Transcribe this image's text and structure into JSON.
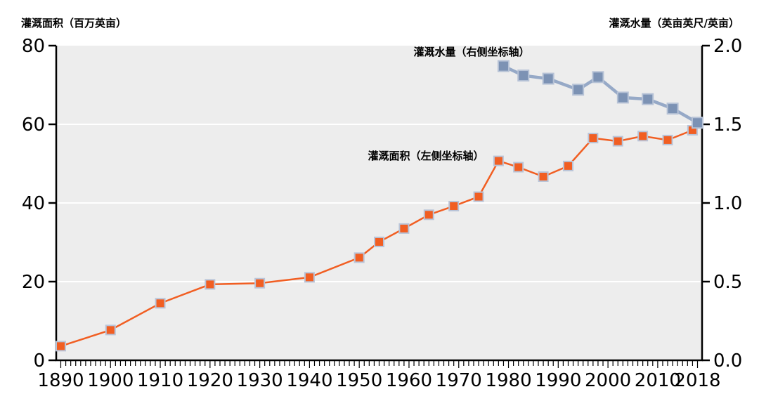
{
  "chart_data": {
    "type": "line",
    "plot_bg": "#EDEDED",
    "grid": {
      "color": "#FFFFFF",
      "left_values": [
        20,
        40,
        60
      ]
    },
    "axis_color": "#000000",
    "x_axis": {
      "range": [
        1890,
        2018
      ],
      "minor_tick_step": 1,
      "ticks": [
        {
          "label": "1890",
          "value": 1890
        },
        {
          "label": "1900",
          "value": 1900
        },
        {
          "label": "1910",
          "value": 1910
        },
        {
          "label": "1920",
          "value": 1920
        },
        {
          "label": "1930",
          "value": 1930
        },
        {
          "label": "1940",
          "value": 1940
        },
        {
          "label": "1950",
          "value": 1950
        },
        {
          "label": "1960",
          "value": 1960
        },
        {
          "label": "1970",
          "value": 1970
        },
        {
          "label": "1980",
          "value": 1980
        },
        {
          "label": "1990",
          "value": 1990
        },
        {
          "label": "2000",
          "value": 2000
        },
        {
          "label": "2010",
          "value": 2010
        },
        {
          "label": "2018",
          "value": 2018
        }
      ]
    },
    "left_axis": {
      "label": "灌溉面积（百万英亩）",
      "range": [
        0,
        80
      ],
      "ticks": [
        {
          "label": "80",
          "value": 80
        },
        {
          "label": "60",
          "value": 60
        },
        {
          "label": "40",
          "value": 40
        },
        {
          "label": "20",
          "value": 20
        },
        {
          "label": "0",
          "value": 0
        }
      ]
    },
    "right_axis": {
      "label": "灌溉水量（英亩英尺/英亩）",
      "range": [
        0,
        2.0
      ],
      "ticks": [
        {
          "label": "2.0",
          "value": 2.0
        },
        {
          "label": "1.5",
          "value": 1.5
        },
        {
          "label": "1.0",
          "value": 1.0
        },
        {
          "label": "0.5",
          "value": 0.5
        },
        {
          "label": "0.0",
          "value": 0.0
        }
      ]
    },
    "series": [
      {
        "name": "灌溉面积（左侧坐标轴）",
        "axis": "left",
        "line_color": "#F15E22",
        "marker_fill": "#F15E22",
        "marker_edge": "#B9C4D8",
        "marker_size": 13,
        "line_width": 2.5,
        "x": [
          1890,
          1900,
          1910,
          1920,
          1930,
          1940,
          1950,
          1954,
          1959,
          1964,
          1969,
          1974,
          1978,
          1982,
          1987,
          1992,
          1997,
          2002,
          2007,
          2012,
          2017
        ],
        "values": [
          3.6,
          7.7,
          14.5,
          19.3,
          19.6,
          21.1,
          26.1,
          30.1,
          33.5,
          37.0,
          39.2,
          41.6,
          50.7,
          49.1,
          46.7,
          49.4,
          56.5,
          55.7,
          57.0,
          56.0,
          58.5
        ]
      },
      {
        "name": "灌溉水量（右侧坐标轴）",
        "axis": "right",
        "line_color": "#96A9C7",
        "marker_fill": "#7C92B4",
        "marker_edge": "#B6C2D6",
        "marker_size": 15,
        "line_width": 4.5,
        "x": [
          1979,
          1983,
          1988,
          1994,
          1998,
          2003,
          2008,
          2013,
          2018
        ],
        "values": [
          1.87,
          1.81,
          1.79,
          1.72,
          1.8,
          1.67,
          1.66,
          1.6,
          1.51
        ]
      }
    ]
  }
}
